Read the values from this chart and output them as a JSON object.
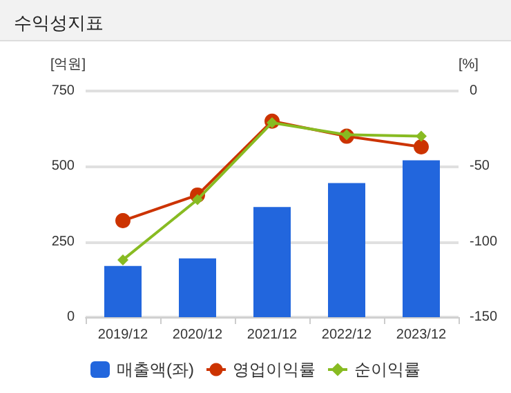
{
  "chart_data": {
    "type": "bar",
    "title": "수익성지표",
    "ylabel": "[억원]",
    "y2label": "[%]",
    "categories": [
      "2019/12",
      "2020/12",
      "2021/12",
      "2022/12",
      "2023/12"
    ],
    "series": [
      {
        "name": "매출액(좌)",
        "color": "#2266dd",
        "values": [
          170,
          195,
          365,
          445,
          520
        ]
      },
      {
        "name": "영업이익률",
        "type": "line",
        "axis": "y2",
        "marker": "circle",
        "color": "#cc3300",
        "values": [
          -86,
          -69,
          -20,
          -30,
          -37
        ]
      },
      {
        "name": "순이익률",
        "type": "line",
        "axis": "y2",
        "marker": "diamond",
        "color": "#88bb22",
        "values": [
          -112,
          -72,
          -21,
          -29,
          -30
        ]
      }
    ],
    "ylim": [
      0,
      750
    ],
    "yticks": [
      0,
      250,
      500,
      750
    ],
    "y2lim": [
      -150,
      0
    ],
    "y2ticks": [
      -150,
      -100,
      -50,
      0
    ],
    "grid": "y",
    "legend": "bottom"
  }
}
